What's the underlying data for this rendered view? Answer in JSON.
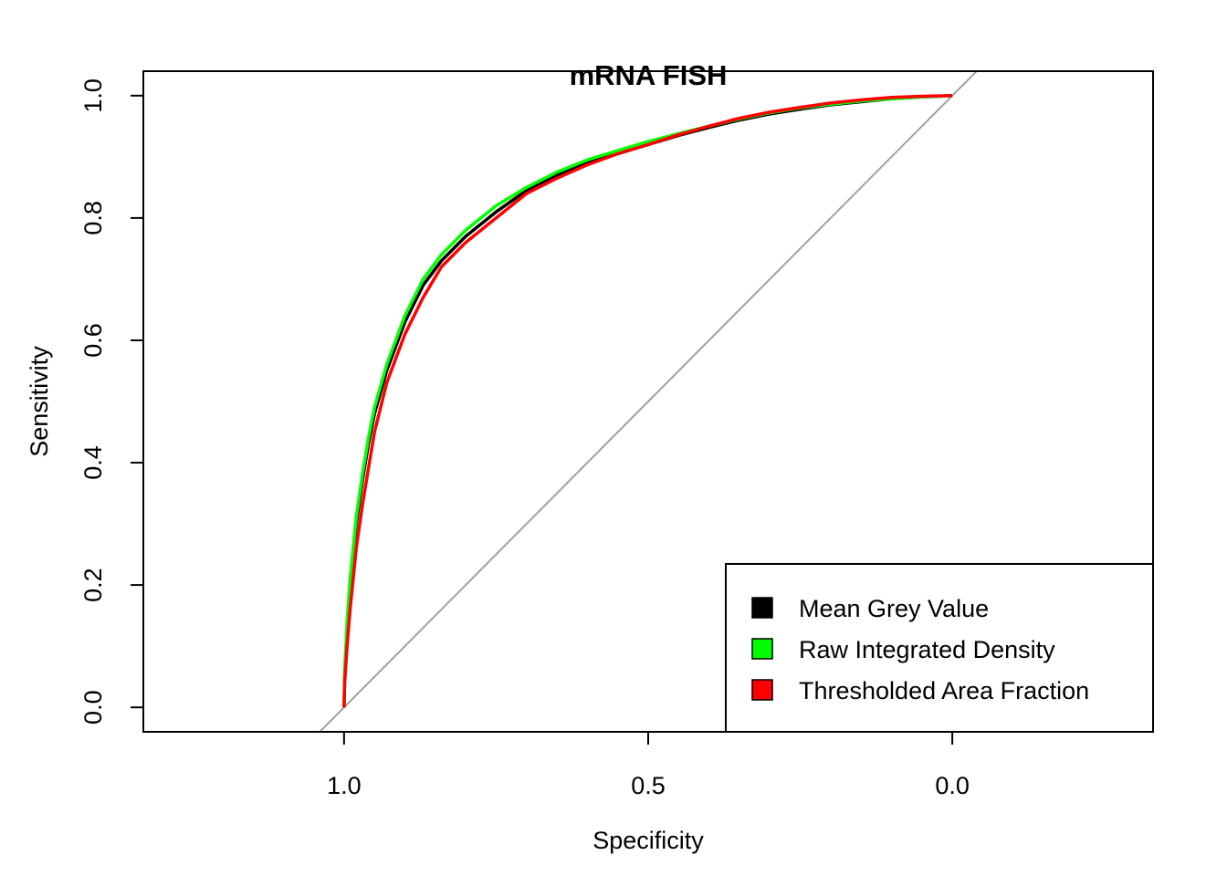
{
  "chart_data": {
    "type": "line",
    "title": "mRNA FISH",
    "xlabel": "Specificity",
    "ylabel": "Sensitivity",
    "x_reversed": true,
    "xlim": [
      1.33,
      -0.33
    ],
    "ylim": [
      -0.04,
      1.04
    ],
    "x_ticks": [
      1.0,
      0.5,
      0.0
    ],
    "x_tick_labels": [
      "1.0",
      "0.5",
      "0.0"
    ],
    "y_ticks": [
      0.0,
      0.2,
      0.4,
      0.6,
      0.8,
      1.0
    ],
    "y_tick_labels": [
      "0.0",
      "0.2",
      "0.4",
      "0.6",
      "0.8",
      "1.0"
    ],
    "grid": false,
    "legend_position": "bottom-right",
    "reference_line": {
      "color": "#a0a0a0",
      "description": "diagonal"
    },
    "series": [
      {
        "name": "Mean Grey Value",
        "color": "#000000",
        "x": [
          1.0,
          0.999,
          0.995,
          0.99,
          0.98,
          0.97,
          0.96,
          0.95,
          0.93,
          0.9,
          0.87,
          0.84,
          0.8,
          0.75,
          0.7,
          0.65,
          0.6,
          0.55,
          0.5,
          0.45,
          0.4,
          0.35,
          0.3,
          0.25,
          0.2,
          0.15,
          0.1,
          0.05,
          0.0
        ],
        "y": [
          0.0,
          0.05,
          0.13,
          0.2,
          0.3,
          0.37,
          0.43,
          0.48,
          0.55,
          0.63,
          0.69,
          0.73,
          0.77,
          0.81,
          0.845,
          0.87,
          0.89,
          0.905,
          0.92,
          0.935,
          0.948,
          0.96,
          0.97,
          0.978,
          0.985,
          0.99,
          0.995,
          0.998,
          1.0
        ]
      },
      {
        "name": "Raw Integrated Density",
        "color": "#00ff00",
        "x": [
          1.0,
          0.999,
          0.995,
          0.99,
          0.98,
          0.97,
          0.96,
          0.95,
          0.93,
          0.9,
          0.87,
          0.84,
          0.8,
          0.75,
          0.7,
          0.65,
          0.6,
          0.55,
          0.5,
          0.45,
          0.4,
          0.35,
          0.3,
          0.25,
          0.2,
          0.15,
          0.1,
          0.05,
          0.0
        ],
        "y": [
          0.0,
          0.06,
          0.14,
          0.21,
          0.31,
          0.38,
          0.44,
          0.49,
          0.56,
          0.64,
          0.7,
          0.74,
          0.78,
          0.82,
          0.85,
          0.875,
          0.895,
          0.91,
          0.925,
          0.938,
          0.95,
          0.962,
          0.972,
          0.98,
          0.986,
          0.991,
          0.995,
          0.998,
          1.0
        ]
      },
      {
        "name": "Thresholded Area Fraction",
        "color": "#ff0000",
        "x": [
          1.0,
          0.999,
          0.995,
          0.99,
          0.98,
          0.97,
          0.96,
          0.95,
          0.93,
          0.9,
          0.87,
          0.84,
          0.8,
          0.75,
          0.7,
          0.65,
          0.6,
          0.55,
          0.5,
          0.45,
          0.4,
          0.35,
          0.3,
          0.25,
          0.2,
          0.15,
          0.1,
          0.05,
          0.0
        ],
        "y": [
          0.0,
          0.04,
          0.1,
          0.16,
          0.26,
          0.33,
          0.39,
          0.45,
          0.53,
          0.61,
          0.67,
          0.72,
          0.76,
          0.8,
          0.84,
          0.865,
          0.887,
          0.905,
          0.92,
          0.936,
          0.95,
          0.963,
          0.973,
          0.981,
          0.988,
          0.993,
          0.997,
          0.999,
          1.0
        ]
      }
    ]
  }
}
